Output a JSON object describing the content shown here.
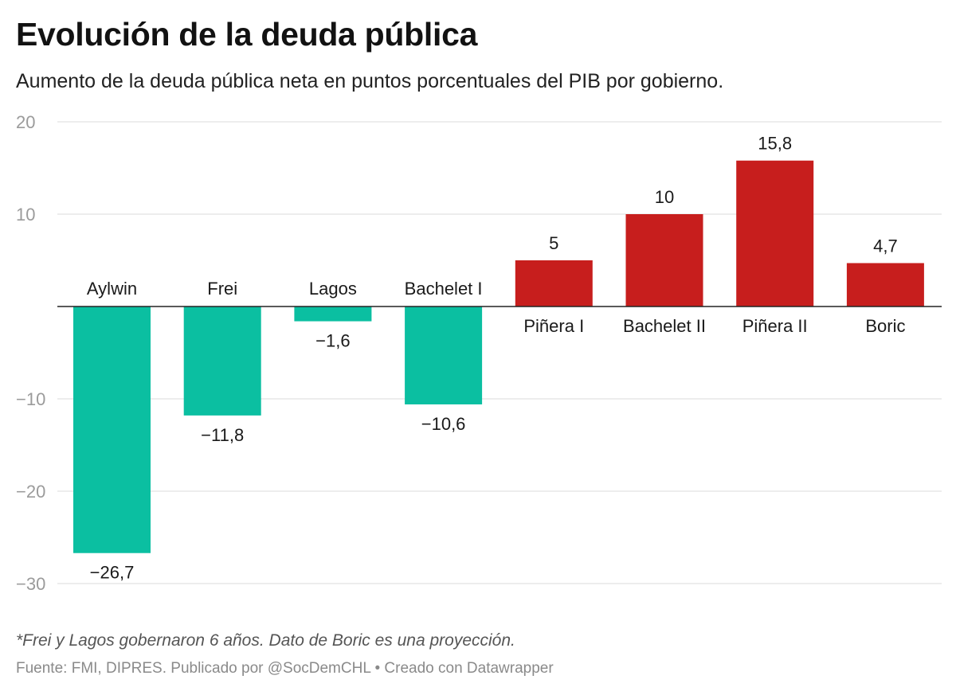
{
  "header": {
    "title": "Evolución de la deuda pública",
    "subtitle": "Aumento de la deuda pública neta en puntos porcentuales del PIB por gobierno."
  },
  "chart_data": {
    "type": "bar",
    "title": "Evolución de la deuda pública",
    "subtitle": "Aumento de la deuda pública neta en puntos porcentuales del PIB por gobierno.",
    "xlabel": "",
    "ylabel": "",
    "ylim": [
      -30,
      20
    ],
    "yticks": [
      20,
      10,
      -10,
      -20,
      -30
    ],
    "ytick_labels": [
      "20",
      "10",
      "−10",
      "−20",
      "−30"
    ],
    "grid": true,
    "categories": [
      "Aylwin",
      "Frei",
      "Lagos",
      "Bachelet I",
      "Piñera I",
      "Bachelet II",
      "Piñera II",
      "Boric"
    ],
    "values": [
      -26.7,
      -11.8,
      -1.6,
      -10.6,
      5,
      10,
      15.8,
      4.7
    ],
    "value_labels": [
      "−26,7",
      "−11,8",
      "−1,6",
      "−10,6",
      "5",
      "10",
      "15,8",
      "4,7"
    ],
    "colors": {
      "negative": "#0bbfa1",
      "positive": "#c71e1d"
    }
  },
  "footer": {
    "note": "*Frei y Lagos gobernaron 6 años. Dato de Boric es una proyección.",
    "source": "Fuente: FMI, DIPRES. Publicado por @SocDemCHL • Creado con Datawrapper"
  }
}
